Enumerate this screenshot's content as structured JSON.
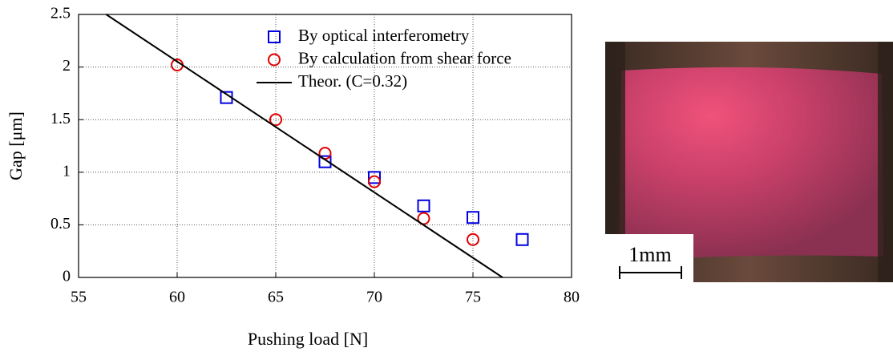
{
  "chart_data": {
    "type": "scatter",
    "x_label": "Pushing load [N]",
    "y_label": "Gap [μm]",
    "xlim": [
      55,
      80
    ],
    "xticks": [
      55,
      60,
      65,
      70,
      75,
      80
    ],
    "ylim": [
      0,
      2.5
    ],
    "yticks": [
      0,
      0.5,
      1,
      1.5,
      2,
      2.5
    ],
    "grid": true,
    "legend": "upper right",
    "series": [
      {
        "name": "By optical interferometry",
        "color": "#0000e0",
        "marker": "square",
        "x": [
          62.5,
          67.5,
          70,
          72.5,
          75,
          77.5
        ],
        "values": [
          1.71,
          1.1,
          0.95,
          0.68,
          0.57,
          0.36
        ]
      },
      {
        "name": "By calculation from shear force",
        "color": "#e00000",
        "marker": "circle",
        "x": [
          60,
          65,
          67.5,
          70,
          72.5,
          75
        ],
        "values": [
          2.02,
          1.5,
          1.18,
          0.91,
          0.56,
          0.36
        ]
      },
      {
        "name": "Theor. (C=0.32)",
        "color": "#000000",
        "marker": "line",
        "x": [
          56.4,
          76.5
        ],
        "values": [
          2.5,
          0
        ]
      }
    ]
  },
  "photo": {
    "scale_label": "1mm"
  }
}
